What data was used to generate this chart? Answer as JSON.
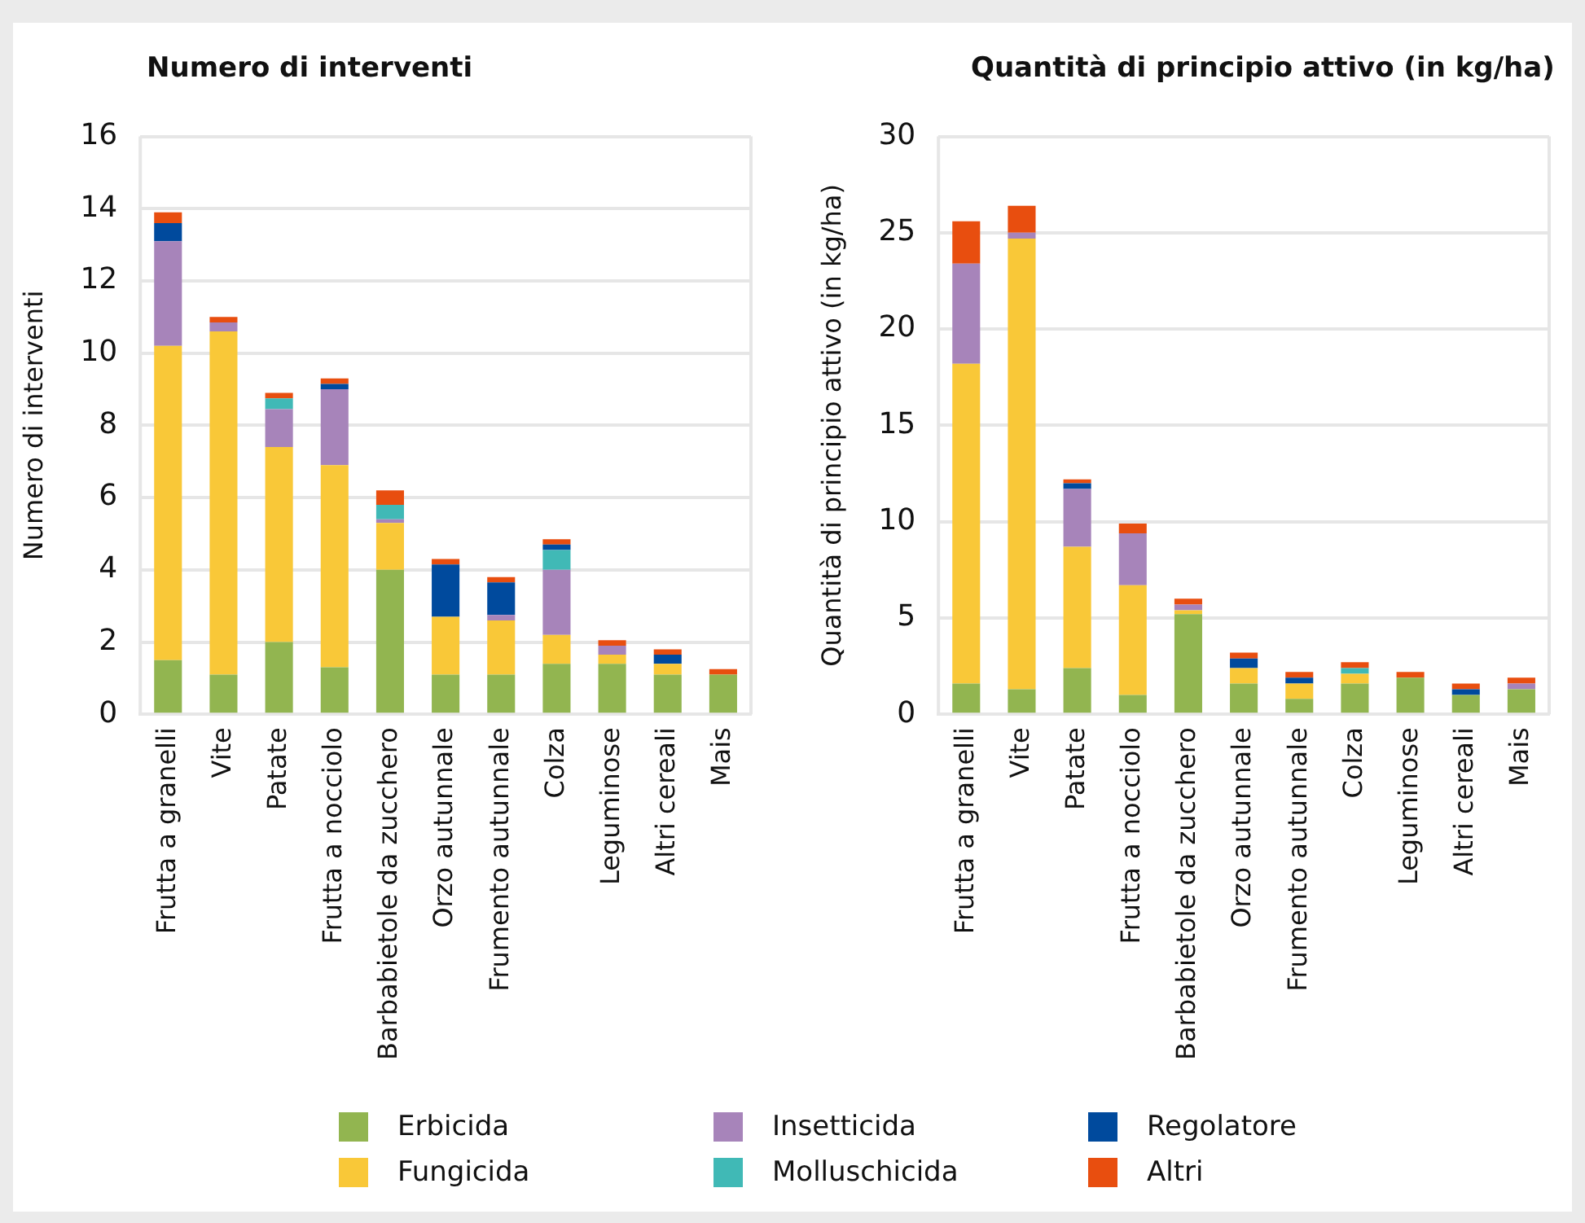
{
  "chart_data": [
    {
      "type": "bar",
      "title": "Numero di interventi",
      "ylabel": "Numero di interventi",
      "stacked": true,
      "grid": "y",
      "legend": "bottom",
      "ylim": [
        0,
        16
      ],
      "yticks": [
        0,
        2,
        4,
        6,
        8,
        10,
        12,
        14,
        16
      ],
      "categories": [
        "Frutta a granelli",
        "Vite",
        "Patate",
        "Frutta a nocciolo",
        "Barbabietole da zucchero",
        "Orzo autunnale",
        "Frumento autunnale",
        "Colza",
        "Leguminose",
        "Altri cereali",
        "Mais"
      ],
      "series": [
        {
          "name": "Erbicida",
          "color": "#92b550",
          "values": [
            1.5,
            1.1,
            2.0,
            1.3,
            4.0,
            1.1,
            1.1,
            1.4,
            1.4,
            1.1,
            1.1
          ]
        },
        {
          "name": "Fungicida",
          "color": "#f9c838",
          "values": [
            8.7,
            9.5,
            5.4,
            5.6,
            1.3,
            1.6,
            1.5,
            0.8,
            0.25,
            0.3,
            0
          ]
        },
        {
          "name": "Insetticida",
          "color": "#a784ba",
          "values": [
            2.9,
            0.25,
            1.05,
            2.1,
            0.1,
            0,
            0.15,
            1.8,
            0.25,
            0,
            0
          ]
        },
        {
          "name": "Molluschicida",
          "color": "#40b9b6",
          "values": [
            0,
            0,
            0.3,
            0,
            0.4,
            0,
            0,
            0.55,
            0,
            0,
            0
          ]
        },
        {
          "name": "Regolatore",
          "color": "#004a9d",
          "values": [
            0.5,
            0,
            0,
            0.15,
            0,
            1.45,
            0.9,
            0.15,
            0,
            0.25,
            0
          ]
        },
        {
          "name": "Altri",
          "color": "#e84e0f",
          "values": [
            0.3,
            0.15,
            0.15,
            0.15,
            0.4,
            0.15,
            0.15,
            0.15,
            0.15,
            0.15,
            0.15
          ]
        }
      ]
    },
    {
      "type": "bar",
      "title": "Quantità di principio attivo (in kg/ha)",
      "ylabel": "Quantità di principio attivo (in kg/ha)",
      "stacked": true,
      "grid": "y",
      "legend": "bottom",
      "ylim": [
        0,
        30
      ],
      "yticks": [
        0,
        5,
        10,
        15,
        20,
        25,
        30
      ],
      "categories": [
        "Frutta a granelli",
        "Vite",
        "Patate",
        "Frutta a nocciolo",
        "Barbabietole da zucchero",
        "Orzo autunnale",
        "Frumento autunnale",
        "Colza",
        "Leguminose",
        "Altri cereali",
        "Mais"
      ],
      "series": [
        {
          "name": "Erbicida",
          "color": "#92b550",
          "values": [
            1.6,
            1.3,
            2.4,
            1.0,
            5.2,
            1.6,
            0.8,
            1.6,
            1.9,
            1.0,
            1.3
          ]
        },
        {
          "name": "Fungicida",
          "color": "#f9c838",
          "values": [
            16.6,
            23.4,
            6.3,
            5.7,
            0.2,
            0.8,
            0.8,
            0.5,
            0,
            0,
            0
          ]
        },
        {
          "name": "Insetticida",
          "color": "#a784ba",
          "values": [
            5.2,
            0.3,
            3.0,
            2.7,
            0.3,
            0,
            0,
            0,
            0,
            0,
            0.3
          ]
        },
        {
          "name": "Molluschicida",
          "color": "#40b9b6",
          "values": [
            0,
            0,
            0,
            0,
            0,
            0,
            0,
            0.3,
            0,
            0,
            0
          ]
        },
        {
          "name": "Regolatore",
          "color": "#004a9d",
          "values": [
            0,
            0,
            0.3,
            0,
            0,
            0.5,
            0.3,
            0,
            0,
            0.3,
            0
          ]
        },
        {
          "name": "Altri",
          "color": "#e84e0f",
          "values": [
            2.2,
            1.4,
            0.2,
            0.5,
            0.3,
            0.3,
            0.3,
            0.3,
            0.3,
            0.3,
            0.3
          ]
        }
      ]
    }
  ]
}
